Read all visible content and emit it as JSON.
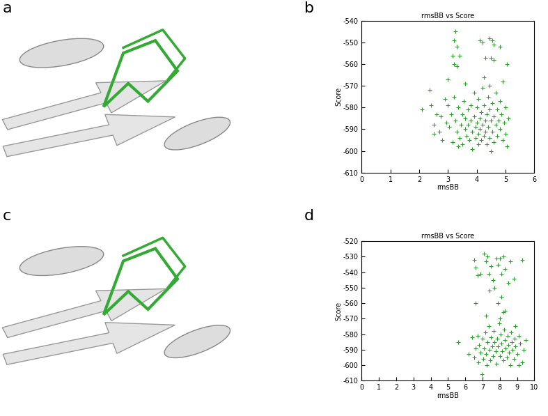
{
  "panel_labels": [
    "a",
    "b",
    "c",
    "d"
  ],
  "chart_data": [
    {
      "type": "scatter",
      "title": "rmsBB vs Score",
      "x_label": "rmsBB",
      "y_label": "Score",
      "color": "#2ca02c",
      "marker": "plus",
      "xlim": [
        0,
        6
      ],
      "xticks": [
        0,
        1,
        2,
        3,
        4,
        5,
        6
      ],
      "ylim": [
        -610,
        -540
      ],
      "yticks": [
        -610,
        -600,
        -590,
        -580,
        -570,
        -560,
        -550,
        -540
      ],
      "x": [
        3.25,
        3.2,
        3.3,
        3.15,
        3.4,
        3.2,
        3.3,
        4.1,
        4.2,
        4.45,
        4.55,
        4.6,
        4.3,
        4.5,
        4.6,
        4.25,
        5.05,
        4.8,
        2.1,
        2.35,
        2.4,
        2.5,
        2.6,
        2.7,
        2.75,
        2.8,
        2.9,
        2.95,
        3.0,
        3.05,
        3.1,
        3.15,
        3.2,
        3.25,
        3.3,
        3.35,
        3.4,
        3.45,
        3.5,
        3.5,
        3.55,
        3.6,
        3.6,
        3.65,
        3.7,
        3.7,
        3.75,
        3.8,
        3.8,
        3.85,
        3.9,
        3.9,
        3.95,
        3.95,
        4.0,
        4.0,
        4.05,
        4.05,
        4.1,
        4.1,
        4.15,
        4.15,
        4.2,
        4.2,
        4.25,
        4.25,
        4.3,
        4.3,
        4.35,
        4.35,
        4.4,
        4.4,
        4.45,
        4.45,
        4.5,
        4.5,
        4.55,
        4.55,
        4.6,
        4.6,
        4.65,
        4.65,
        4.7,
        4.7,
        4.75,
        4.8,
        4.8,
        4.85,
        4.9,
        4.95,
        5.0,
        5.0,
        5.05,
        5.1,
        4.9,
        3.0,
        3.6,
        4.45,
        2.5,
        3.35,
        3.85,
        4.05
      ],
      "values": [
        -545,
        -549,
        -552,
        -556,
        -556,
        -560,
        -561,
        -549,
        -550,
        -548,
        -549,
        -551,
        -557,
        -557,
        -558,
        -566,
        -560,
        -552,
        -581,
        -572,
        -579,
        -592,
        -583,
        -591,
        -584,
        -595,
        -576,
        -587,
        -579,
        -589,
        -583,
        -596,
        -575,
        -586,
        -591,
        -580,
        -594,
        -588,
        -583,
        -597,
        -577,
        -590,
        -585,
        -593,
        -581,
        -588,
        -595,
        -579,
        -586,
        -591,
        -573,
        -584,
        -589,
        -594,
        -580,
        -587,
        -592,
        -576,
        -585,
        -590,
        -595,
        -582,
        -571,
        -588,
        -593,
        -579,
        -586,
        -591,
        -583,
        -597,
        -575,
        -589,
        -594,
        -581,
        -586,
        -600,
        -578,
        -591,
        -584,
        -596,
        -573,
        -588,
        -581,
        -593,
        -586,
        -577,
        -590,
        -583,
        -595,
        -587,
        -580,
        -592,
        -598,
        -585,
        -568,
        -567,
        -569,
        -570,
        -588,
        -598,
        -599,
        -597
      ]
    },
    {
      "type": "scatter",
      "title": "rmsBB vs Score",
      "x_label": "rmsBB",
      "y_label": "Score",
      "color": "#2ca02c",
      "marker": "plus",
      "xlim": [
        0,
        10
      ],
      "xticks": [
        0,
        1,
        2,
        3,
        4,
        5,
        6,
        7,
        8,
        9,
        10
      ],
      "ylim": [
        -610,
        -520
      ],
      "yticks": [
        -610,
        -600,
        -590,
        -580,
        -570,
        -560,
        -550,
        -540,
        -530,
        -520
      ],
      "x": [
        6.5,
        6.6,
        6.7,
        6.9,
        7.1,
        7.2,
        7.3,
        7.35,
        7.5,
        7.6,
        7.8,
        7.9,
        8.0,
        8.1,
        8.2,
        8.3,
        8.5,
        8.6,
        8.8,
        9.3,
        7.7,
        8.1,
        7.4,
        6.6,
        8.3,
        7.9,
        5.6,
        6.2,
        6.4,
        6.5,
        6.6,
        6.7,
        6.75,
        6.8,
        6.9,
        6.95,
        7.0,
        7.05,
        7.1,
        7.15,
        7.2,
        7.25,
        7.3,
        7.35,
        7.4,
        7.45,
        7.5,
        7.55,
        7.6,
        7.65,
        7.7,
        7.75,
        7.8,
        7.85,
        7.9,
        7.95,
        8.0,
        8.05,
        8.1,
        8.15,
        8.2,
        8.25,
        8.3,
        8.35,
        8.4,
        8.45,
        8.5,
        8.55,
        8.6,
        8.65,
        8.7,
        8.75,
        8.8,
        8.85,
        8.9,
        9.0,
        9.1,
        9.2,
        9.3,
        9.4,
        9.5,
        8.0,
        8.2,
        8.9,
        7.2,
        9.1
      ],
      "values": [
        -532,
        -537,
        -542,
        -541,
        -528,
        -533,
        -530,
        -541,
        -536,
        -545,
        -531,
        -535,
        -531,
        -541,
        -530,
        -538,
        -547,
        -533,
        -544,
        -532,
        -550,
        -556,
        -552,
        -560,
        -565,
        -560,
        -585,
        -593,
        -582,
        -595,
        -589,
        -581,
        -598,
        -587,
        -592,
        -606,
        -583,
        -596,
        -589,
        -579,
        -593,
        -600,
        -585,
        -575,
        -590,
        -597,
        -582,
        -588,
        -594,
        -578,
        -585,
        -591,
        -599,
        -583,
        -588,
        -573,
        -594,
        -580,
        -586,
        -591,
        -597,
        -577,
        -584,
        -589,
        -595,
        -581,
        -587,
        -592,
        -600,
        -579,
        -585,
        -590,
        -596,
        -583,
        -588,
        -593,
        -581,
        -586,
        -598,
        -590,
        -584,
        -570,
        -566,
        -575,
        -568,
        -600
      ]
    }
  ]
}
